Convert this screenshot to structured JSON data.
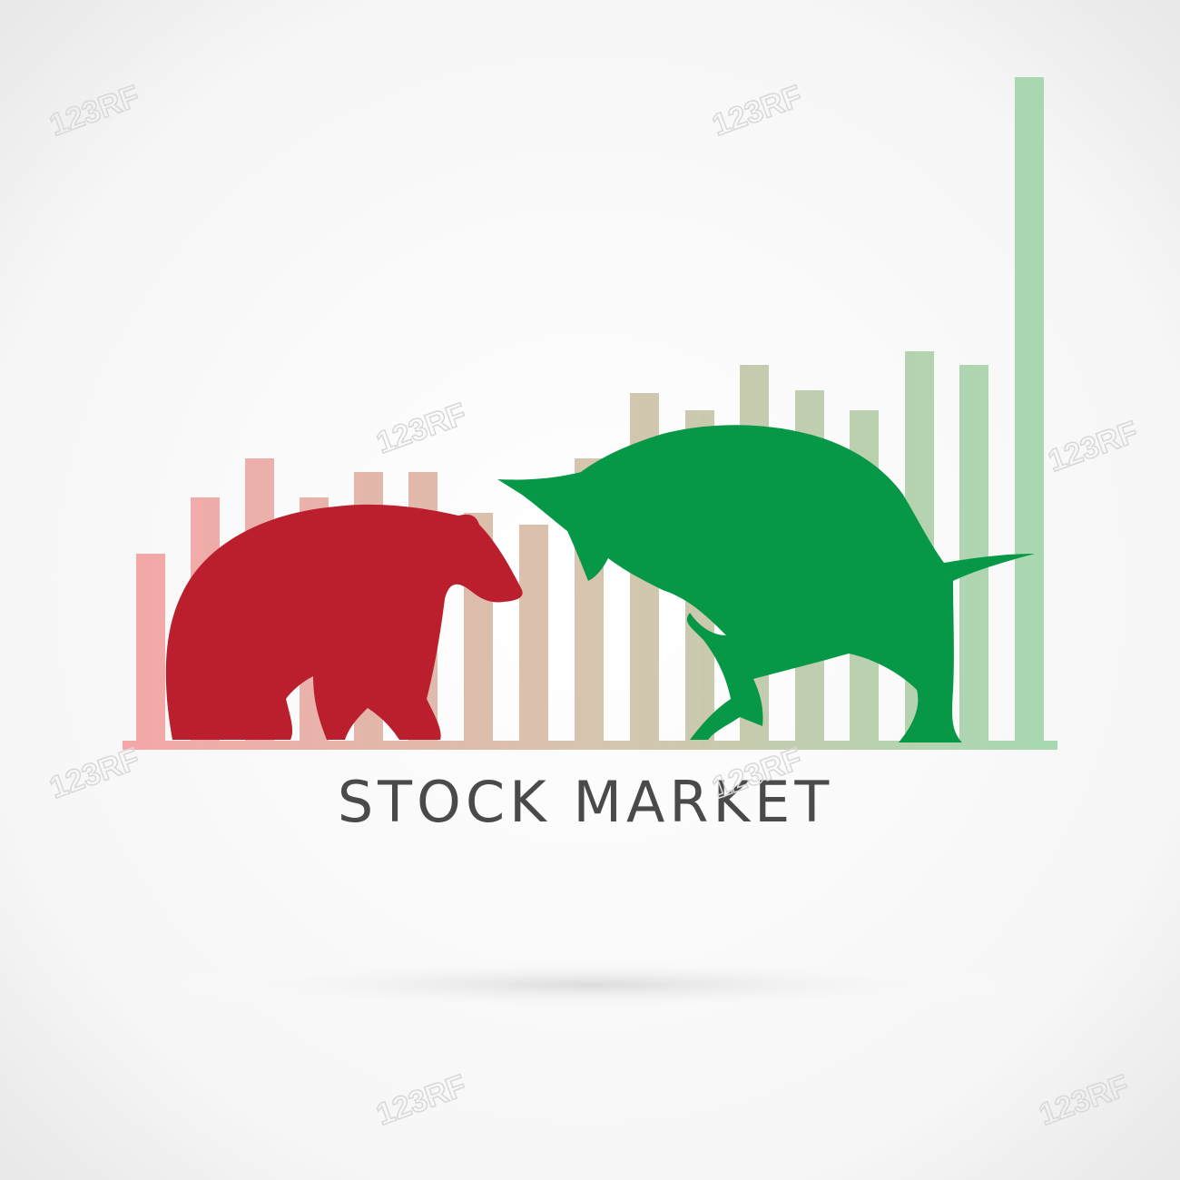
{
  "title": "STOCK MARKET",
  "watermark": "123RF"
}
